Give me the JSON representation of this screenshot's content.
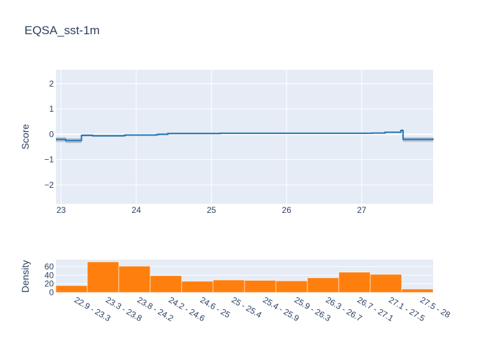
{
  "chart_data": [
    {
      "type": "line",
      "title": "EQSA_sst-1m",
      "xlabel": "",
      "ylabel": "Score",
      "xlim": [
        22.93,
        27.95
      ],
      "ylim": [
        -2.75,
        2.55
      ],
      "x_ticks": [
        "23",
        "24",
        "25",
        "26",
        "27"
      ],
      "y_ticks": [
        "2",
        "1",
        "0",
        "−1",
        "−2"
      ],
      "y_tick_values": [
        2,
        1,
        0,
        -1,
        -2
      ],
      "x_tick_values": [
        23,
        24,
        25,
        26,
        27
      ],
      "grid": true,
      "colors": {
        "line": "#1f77b4",
        "band": "#aab3c4",
        "plot_bg": "#e5ecf6",
        "grid": "#ffffff"
      },
      "series": [
        {
          "shape": "step",
          "x": [
            22.93,
            23.06,
            23.27,
            23.28,
            23.42,
            23.84,
            23.86,
            24.27,
            24.3,
            24.42,
            25.12,
            27.14,
            27.31,
            27.52,
            27.55,
            27.95
          ],
          "y": [
            -0.2,
            -0.25,
            -0.05,
            -0.04,
            -0.06,
            -0.04,
            -0.03,
            -0.01,
            0.0,
            0.03,
            0.04,
            0.05,
            0.08,
            0.15,
            -0.2,
            -0.22
          ],
          "band_low": [
            -0.3,
            -0.35,
            -0.1,
            -0.08,
            -0.1,
            -0.08,
            -0.06,
            -0.04,
            -0.03,
            0.0,
            0.02,
            0.03,
            0.05,
            0.1,
            -0.3,
            -0.32
          ],
          "band_high": [
            -0.12,
            -0.16,
            -0.01,
            0.0,
            -0.02,
            0.0,
            0.0,
            0.02,
            0.03,
            0.06,
            0.06,
            0.07,
            0.11,
            0.2,
            -0.12,
            -0.13
          ]
        }
      ]
    },
    {
      "type": "bar",
      "title": "",
      "xlabel": "",
      "ylabel": "Density",
      "ylim": [
        0,
        76
      ],
      "y_ticks": [
        "60",
        "40",
        "20",
        "0"
      ],
      "y_tick_values": [
        60,
        40,
        20,
        0
      ],
      "grid": true,
      "colors": {
        "bar": "#ff7f0e",
        "plot_bg": "#e5ecf6",
        "grid": "#ffffff"
      },
      "categories": [
        "22.9 - 23.3",
        "23.3 - 23.8",
        "23.8 - 24.2",
        "24.2 - 24.6",
        "24.6 - 25",
        "25 - 25.4",
        "25.4 - 25.9",
        "25.9 - 26.3",
        "26.3 - 26.7",
        "26.7 - 27.1",
        "27.1 - 27.5",
        "27.5 - 28"
      ],
      "values": [
        16,
        71,
        61,
        39,
        26,
        29,
        28,
        27,
        34,
        47,
        42,
        8
      ]
    }
  ]
}
